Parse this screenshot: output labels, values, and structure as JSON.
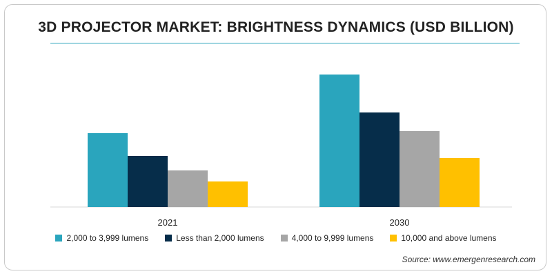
{
  "chart_data": {
    "type": "bar",
    "title": "3D PROJECTOR MARKET: BRIGHTNESS DYNAMICS (USD BILLION)",
    "categories": [
      "2021",
      "2030"
    ],
    "series": [
      {
        "name": "2,000 to 3,999 lumens",
        "color": "#2aa5bd",
        "values": [
          1.07,
          1.92
        ]
      },
      {
        "name": "Less than 2,000 lumens",
        "color": "#062d4a",
        "values": [
          0.74,
          1.37
        ]
      },
      {
        "name": "4,000 to 9,999 lumens",
        "color": "#a6a6a6",
        "values": [
          0.53,
          1.1
        ]
      },
      {
        "name": "10,000 and above lumens",
        "color": "#ffc000",
        "values": [
          0.37,
          0.71
        ]
      }
    ],
    "ylim": [
      0,
      2.0
    ],
    "grid": false,
    "legend_position": "bottom"
  },
  "source": "Source: www.emergenresearch.com"
}
